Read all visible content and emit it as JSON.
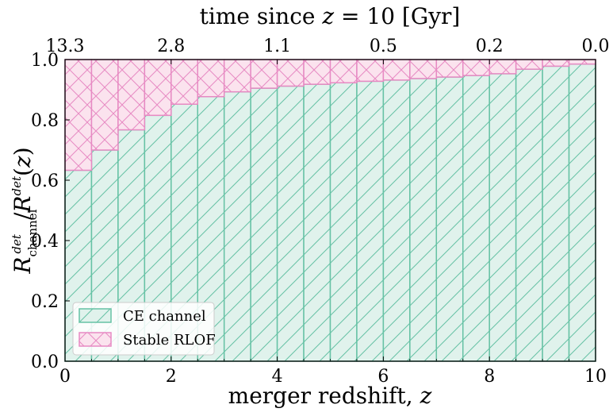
{
  "chart_data": {
    "type": "bar",
    "stacked": true,
    "x_bin_edges": [
      0,
      0.5,
      1,
      1.5,
      2,
      2.5,
      3,
      3.5,
      4,
      4.5,
      5,
      5.5,
      6,
      6.5,
      7,
      7.5,
      8,
      8.5,
      9,
      9.5,
      10
    ],
    "series": [
      {
        "name": "CE channel",
        "color": "#66c2a5",
        "fill": "#e0f2ec",
        "hatch": "diagonal",
        "values": [
          0.633,
          0.7,
          0.767,
          0.815,
          0.852,
          0.877,
          0.893,
          0.905,
          0.912,
          0.918,
          0.923,
          0.928,
          0.932,
          0.937,
          0.942,
          0.947,
          0.953,
          0.968,
          0.978,
          0.985
        ]
      },
      {
        "name": "Stable RLOF",
        "color": "#e78ac3",
        "fill": "#fbe3ee",
        "hatch": "cross",
        "values": [
          0.367,
          0.3,
          0.233,
          0.185,
          0.148,
          0.123,
          0.107,
          0.095,
          0.088,
          0.082,
          0.077,
          0.072,
          0.068,
          0.063,
          0.058,
          0.053,
          0.047,
          0.032,
          0.022,
          0.015
        ]
      }
    ],
    "xlabel": "merger redshift, z",
    "ylabel": "R^det_channel / R^det(z)",
    "top_xlabel": "time since z = 10 [Gyr]",
    "xlim": [
      0,
      10
    ],
    "ylim": [
      0,
      1
    ],
    "x_ticks": [
      "0",
      "2",
      "4",
      "6",
      "8",
      "10"
    ],
    "y_ticks": [
      "0.0",
      "0.2",
      "0.4",
      "0.6",
      "0.8",
      "1.0"
    ],
    "top_ticks": [
      {
        "label": "13.3",
        "z": 0
      },
      {
        "label": "2.8",
        "z": 2
      },
      {
        "label": "1.1",
        "z": 4
      },
      {
        "label": "0.5",
        "z": 6
      },
      {
        "label": "0.2",
        "z": 8
      },
      {
        "label": "0.0",
        "z": 10
      }
    ],
    "legend_position": "lower-left",
    "grid": false
  }
}
